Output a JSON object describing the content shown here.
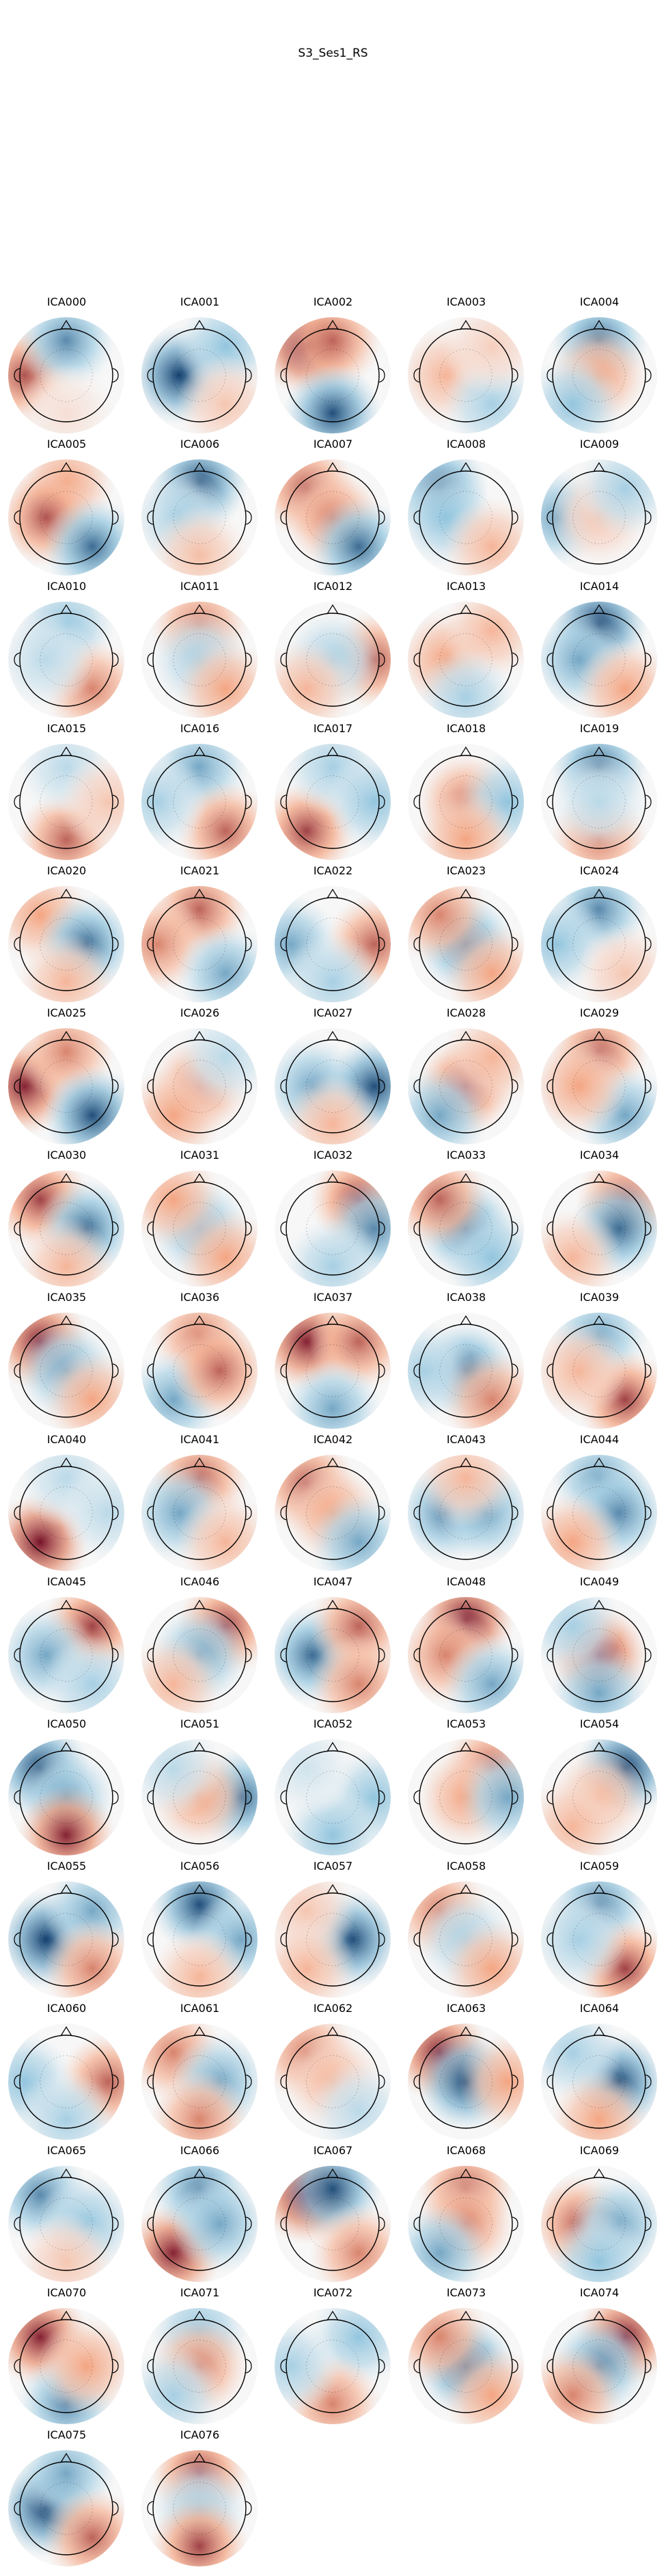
{
  "figure": {
    "title": "S3_Ses1_RS",
    "components": [
      {
        "label": "ICA000",
        "pattern": [
          [
            "ll",
            0.75
          ],
          [
            "tc",
            -0.7
          ],
          [
            "bc",
            0.15
          ]
        ]
      },
      {
        "label": "ICA001",
        "pattern": [
          [
            "cl",
            -0.95
          ],
          [
            "tr",
            -0.5
          ],
          [
            "br",
            0.3
          ]
        ]
      },
      {
        "label": "ICA002",
        "pattern": [
          [
            "tl",
            0.95
          ],
          [
            "tc",
            0.7
          ],
          [
            "bc",
            -0.9
          ]
        ]
      },
      {
        "label": "ICA003",
        "pattern": [
          [
            "cl",
            0.4
          ],
          [
            "br",
            -0.4
          ],
          [
            "tr",
            0.25
          ]
        ]
      },
      {
        "label": "ICA004",
        "pattern": [
          [
            "tc",
            -0.8
          ],
          [
            "cc",
            0.5
          ],
          [
            "bl",
            -0.5
          ]
        ]
      },
      {
        "label": "ICA005",
        "pattern": [
          [
            "tc",
            0.5
          ],
          [
            "cl",
            0.75
          ],
          [
            "br",
            -0.8
          ]
        ]
      },
      {
        "label": "ICA006",
        "pattern": [
          [
            "tc",
            -0.9
          ],
          [
            "cl",
            -0.4
          ],
          [
            "bc",
            0.35
          ]
        ]
      },
      {
        "label": "ICA007",
        "pattern": [
          [
            "tl",
            0.7
          ],
          [
            "cc",
            0.6
          ],
          [
            "br",
            -0.8
          ]
        ]
      },
      {
        "label": "ICA008",
        "pattern": [
          [
            "tl",
            -0.8
          ],
          [
            "cl",
            -0.5
          ],
          [
            "br",
            0.4
          ]
        ]
      },
      {
        "label": "ICA009",
        "pattern": [
          [
            "ll",
            -0.6
          ],
          [
            "cc",
            0.3
          ],
          [
            "tr",
            -0.4
          ]
        ]
      },
      {
        "label": "ICA010",
        "pattern": [
          [
            "tc",
            -0.5
          ],
          [
            "br",
            0.6
          ],
          [
            "cl",
            -0.3
          ]
        ]
      },
      {
        "label": "ICA011",
        "pattern": [
          [
            "tc",
            0.6
          ],
          [
            "cc",
            -0.4
          ],
          [
            "br",
            0.5
          ]
        ]
      },
      {
        "label": "ICA012",
        "pattern": [
          [
            "rr",
            0.7
          ],
          [
            "cc",
            -0.4
          ],
          [
            "bl",
            0.4
          ]
        ]
      },
      {
        "label": "ICA013",
        "pattern": [
          [
            "cl",
            0.5
          ],
          [
            "tr",
            0.4
          ],
          [
            "bc",
            -0.4
          ]
        ]
      },
      {
        "label": "ICA014",
        "pattern": [
          [
            "tc",
            -0.95
          ],
          [
            "cl",
            -0.6
          ],
          [
            "br",
            0.5
          ]
        ]
      },
      {
        "label": "ICA015",
        "pattern": [
          [
            "bc",
            0.7
          ],
          [
            "tc",
            -0.3
          ],
          [
            "rr",
            0.3
          ]
        ]
      },
      {
        "label": "ICA016",
        "pattern": [
          [
            "tc",
            -0.6
          ],
          [
            "br",
            0.7
          ],
          [
            "ll",
            -0.4
          ]
        ]
      },
      {
        "label": "ICA017",
        "pattern": [
          [
            "bl",
            0.8
          ],
          [
            "tc",
            -0.4
          ],
          [
            "rr",
            -0.5
          ]
        ]
      },
      {
        "label": "ICA018",
        "pattern": [
          [
            "cc",
            0.6
          ],
          [
            "rr",
            -0.5
          ],
          [
            "bc",
            0.5
          ]
        ]
      },
      {
        "label": "ICA019",
        "pattern": [
          [
            "tc",
            -0.8
          ],
          [
            "bc",
            0.6
          ],
          [
            "cc",
            -0.3
          ]
        ]
      },
      {
        "label": "ICA020",
        "pattern": [
          [
            "tl",
            0.5
          ],
          [
            "cr",
            -0.8
          ],
          [
            "bc",
            0.4
          ]
        ]
      },
      {
        "label": "ICA021",
        "pattern": [
          [
            "tc",
            0.7
          ],
          [
            "ll",
            0.6
          ],
          [
            "br",
            -0.6
          ]
        ]
      },
      {
        "label": "ICA022",
        "pattern": [
          [
            "ll",
            -0.6
          ],
          [
            "rr",
            0.7
          ],
          [
            "bc",
            -0.4
          ]
        ]
      },
      {
        "label": "ICA023",
        "pattern": [
          [
            "cc",
            -0.8
          ],
          [
            "tl",
            0.6
          ],
          [
            "br",
            0.5
          ]
        ]
      },
      {
        "label": "ICA024",
        "pattern": [
          [
            "tc",
            -0.7
          ],
          [
            "ll",
            -0.5
          ],
          [
            "br",
            0.3
          ]
        ]
      },
      {
        "label": "ICA025",
        "pattern": [
          [
            "ll",
            0.9
          ],
          [
            "tc",
            0.6
          ],
          [
            "br",
            -0.9
          ]
        ]
      },
      {
        "label": "ICA026",
        "pattern": [
          [
            "cc",
            0.6
          ],
          [
            "bl",
            0.5
          ],
          [
            "tr",
            -0.3
          ]
        ]
      },
      {
        "label": "ICA027",
        "pattern": [
          [
            "cl",
            -0.6
          ],
          [
            "rr",
            -0.9
          ],
          [
            "bc",
            0.4
          ]
        ]
      },
      {
        "label": "ICA028",
        "pattern": [
          [
            "cc",
            0.8
          ],
          [
            "bl",
            -0.6
          ],
          [
            "tr",
            0.4
          ]
        ]
      },
      {
        "label": "ICA029",
        "pattern": [
          [
            "tc",
            0.7
          ],
          [
            "br",
            -0.6
          ],
          [
            "cl",
            0.5
          ]
        ]
      },
      {
        "label": "ICA030",
        "pattern": [
          [
            "tl",
            0.8
          ],
          [
            "cr",
            -0.8
          ],
          [
            "bc",
            0.4
          ]
        ]
      },
      {
        "label": "ICA031",
        "pattern": [
          [
            "cc",
            -0.6
          ],
          [
            "tl",
            0.5
          ],
          [
            "br",
            0.5
          ]
        ]
      },
      {
        "label": "ICA032",
        "pattern": [
          [
            "tr",
            0.8
          ],
          [
            "rr",
            -0.7
          ],
          [
            "bc",
            -0.4
          ]
        ]
      },
      {
        "label": "ICA033",
        "pattern": [
          [
            "cc",
            -0.8
          ],
          [
            "tl",
            0.7
          ],
          [
            "br",
            -0.5
          ]
        ]
      },
      {
        "label": "ICA034",
        "pattern": [
          [
            "tr",
            0.7
          ],
          [
            "cr",
            -0.8
          ],
          [
            "bl",
            0.4
          ]
        ]
      },
      {
        "label": "ICA035",
        "pattern": [
          [
            "tl",
            0.9
          ],
          [
            "cc",
            -0.6
          ],
          [
            "br",
            0.5
          ]
        ]
      },
      {
        "label": "ICA036",
        "pattern": [
          [
            "tc",
            0.6
          ],
          [
            "bl",
            -0.6
          ],
          [
            "cr",
            0.7
          ]
        ]
      },
      {
        "label": "ICA037",
        "pattern": [
          [
            "tl",
            0.9
          ],
          [
            "tr",
            0.7
          ],
          [
            "bc",
            -0.6
          ]
        ]
      },
      {
        "label": "ICA038",
        "pattern": [
          [
            "cc",
            -0.8
          ],
          [
            "ll",
            -0.4
          ],
          [
            "br",
            0.6
          ]
        ]
      },
      {
        "label": "ICA039",
        "pattern": [
          [
            "tc",
            -0.6
          ],
          [
            "br",
            0.8
          ],
          [
            "cl",
            0.4
          ]
        ]
      },
      {
        "label": "ICA040",
        "pattern": [
          [
            "bl",
            0.95
          ],
          [
            "tc",
            -0.3
          ],
          [
            "rr",
            -0.3
          ]
        ]
      },
      {
        "label": "ICA041",
        "pattern": [
          [
            "tc",
            0.7
          ],
          [
            "cl",
            -0.6
          ],
          [
            "br",
            0.4
          ]
        ]
      },
      {
        "label": "ICA042",
        "pattern": [
          [
            "tl",
            0.7
          ],
          [
            "cc",
            0.5
          ],
          [
            "br",
            -0.6
          ]
        ]
      },
      {
        "label": "ICA043",
        "pattern": [
          [
            "cl",
            -0.7
          ],
          [
            "cr",
            -0.6
          ],
          [
            "tc",
            0.4
          ]
        ]
      },
      {
        "label": "ICA044",
        "pattern": [
          [
            "tc",
            -0.6
          ],
          [
            "cr",
            -0.7
          ],
          [
            "bl",
            0.5
          ]
        ]
      },
      {
        "label": "ICA045",
        "pattern": [
          [
            "tr",
            0.8
          ],
          [
            "cl",
            -0.6
          ],
          [
            "br",
            -0.4
          ]
        ]
      },
      {
        "label": "ICA046",
        "pattern": [
          [
            "tr",
            0.8
          ],
          [
            "cc",
            -0.6
          ],
          [
            "bl",
            0.4
          ]
        ]
      },
      {
        "label": "ICA047",
        "pattern": [
          [
            "cl",
            -0.8
          ],
          [
            "tr",
            0.7
          ],
          [
            "br",
            0.6
          ]
        ]
      },
      {
        "label": "ICA048",
        "pattern": [
          [
            "tc",
            0.95
          ],
          [
            "cl",
            0.6
          ],
          [
            "br",
            -0.6
          ]
        ]
      },
      {
        "label": "ICA049",
        "pattern": [
          [
            "cc",
            0.9
          ],
          [
            "tl",
            -0.4
          ],
          [
            "bc",
            -0.6
          ]
        ]
      },
      {
        "label": "ICA050",
        "pattern": [
          [
            "tl",
            -0.9
          ],
          [
            "cc",
            -0.6
          ],
          [
            "bc",
            0.9
          ]
        ]
      },
      {
        "label": "ICA051",
        "pattern": [
          [
            "rr",
            -0.8
          ],
          [
            "cc",
            0.5
          ],
          [
            "tl",
            -0.3
          ]
        ]
      },
      {
        "label": "ICA052",
        "pattern": [
          [
            "rr",
            -0.5
          ],
          [
            "bc",
            -0.5
          ],
          [
            "tl",
            -0.2
          ]
        ]
      },
      {
        "label": "ICA053",
        "pattern": [
          [
            "tr",
            0.7
          ],
          [
            "cc",
            0.5
          ],
          [
            "rr",
            -0.6
          ]
        ]
      },
      {
        "label": "ICA054",
        "pattern": [
          [
            "tr",
            -0.95
          ],
          [
            "cc",
            0.4
          ],
          [
            "bl",
            0.4
          ]
        ]
      },
      {
        "label": "ICA055",
        "pattern": [
          [
            "cl",
            -0.95
          ],
          [
            "tr",
            -0.6
          ],
          [
            "br",
            0.6
          ]
        ]
      },
      {
        "label": "ICA056",
        "pattern": [
          [
            "tc",
            -0.9
          ],
          [
            "rr",
            -0.6
          ],
          [
            "bc",
            0.4
          ]
        ]
      },
      {
        "label": "ICA057",
        "pattern": [
          [
            "cr",
            -0.9
          ],
          [
            "tl",
            0.3
          ],
          [
            "bl",
            0.4
          ]
        ]
      },
      {
        "label": "ICA058",
        "pattern": [
          [
            "tl",
            0.6
          ],
          [
            "cc",
            -0.4
          ],
          [
            "br",
            0.5
          ]
        ]
      },
      {
        "label": "ICA059",
        "pattern": [
          [
            "tc",
            -0.7
          ],
          [
            "br",
            0.8
          ],
          [
            "cl",
            -0.4
          ]
        ]
      },
      {
        "label": "ICA060",
        "pattern": [
          [
            "rr",
            0.7
          ],
          [
            "ll",
            -0.5
          ],
          [
            "bc",
            -0.4
          ]
        ]
      },
      {
        "label": "ICA061",
        "pattern": [
          [
            "tl",
            0.6
          ],
          [
            "cr",
            -0.6
          ],
          [
            "bc",
            0.6
          ]
        ]
      },
      {
        "label": "ICA062",
        "pattern": [
          [
            "tl",
            0.6
          ],
          [
            "cc",
            0.4
          ],
          [
            "br",
            -0.3
          ]
        ]
      },
      {
        "label": "ICA063",
        "pattern": [
          [
            "tl",
            0.9
          ],
          [
            "cc",
            -0.9
          ],
          [
            "rr",
            0.5
          ]
        ]
      },
      {
        "label": "ICA064",
        "pattern": [
          [
            "cr",
            -0.9
          ],
          [
            "tl",
            -0.4
          ],
          [
            "bc",
            0.5
          ]
        ]
      },
      {
        "label": "ICA065",
        "pattern": [
          [
            "tl",
            -0.7
          ],
          [
            "cr",
            -0.5
          ],
          [
            "bc",
            0.3
          ]
        ]
      },
      {
        "label": "ICA066",
        "pattern": [
          [
            "bl",
            0.9
          ],
          [
            "tc",
            -0.7
          ],
          [
            "cr",
            -0.6
          ]
        ]
      },
      {
        "label": "ICA067",
        "pattern": [
          [
            "tl",
            0.95
          ],
          [
            "tc",
            -0.9
          ],
          [
            "br",
            0.6
          ]
        ]
      },
      {
        "label": "ICA068",
        "pattern": [
          [
            "tc",
            0.7
          ],
          [
            "cc",
            0.6
          ],
          [
            "bl",
            -0.6
          ]
        ]
      },
      {
        "label": "ICA069",
        "pattern": [
          [
            "cl",
            0.7
          ],
          [
            "cr",
            -0.6
          ],
          [
            "bc",
            -0.5
          ]
        ]
      },
      {
        "label": "ICA070",
        "pattern": [
          [
            "tl",
            0.9
          ],
          [
            "bc",
            -0.7
          ],
          [
            "cr",
            0.5
          ]
        ]
      },
      {
        "label": "ICA071",
        "pattern": [
          [
            "tc",
            -0.5
          ],
          [
            "cc",
            0.6
          ],
          [
            "bl",
            -0.4
          ]
        ]
      },
      {
        "label": "ICA072",
        "pattern": [
          [
            "tr",
            -0.5
          ],
          [
            "bc",
            0.6
          ],
          [
            "ll",
            -0.4
          ]
        ]
      },
      {
        "label": "ICA073",
        "pattern": [
          [
            "cc",
            -0.9
          ],
          [
            "tl",
            0.6
          ],
          [
            "br",
            0.5
          ]
        ]
      },
      {
        "label": "ICA074",
        "pattern": [
          [
            "tr",
            0.9
          ],
          [
            "cc",
            -0.7
          ],
          [
            "bl",
            0.6
          ]
        ]
      },
      {
        "label": "ICA075",
        "pattern": [
          [
            "cl",
            -0.95
          ],
          [
            "tc",
            -0.6
          ],
          [
            "br",
            0.7
          ]
        ]
      },
      {
        "label": "ICA076",
        "pattern": [
          [
            "tc",
            0.8
          ],
          [
            "cc",
            -0.4
          ],
          [
            "bc",
            0.8
          ]
        ]
      }
    ]
  }
}
